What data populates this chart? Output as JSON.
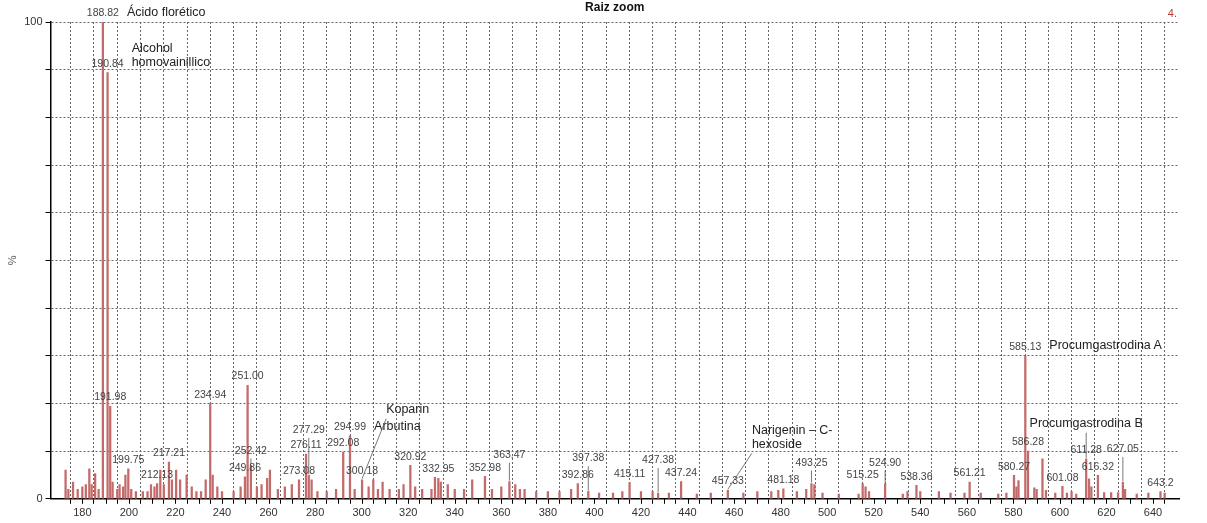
{
  "chart_data": {
    "type": "bar",
    "title": "Raiz zoom",
    "ylabel": "%",
    "color": "#c46a6a",
    "x": [
      172.8,
      174,
      176,
      178,
      180,
      181.5,
      183,
      184,
      185.5,
      187,
      188.82,
      190.84,
      191.98,
      193,
      195,
      196,
      197.5,
      198.5,
      199.75,
      201,
      203,
      206,
      208,
      209.5,
      211,
      212.13,
      213.5,
      215,
      217.21,
      218.5,
      220.3,
      222,
      224.8,
      227,
      229,
      231,
      233,
      234.94,
      236,
      238,
      240,
      245,
      248,
      249.86,
      251.0,
      252.42,
      255,
      257,
      259.4,
      260.6,
      264,
      267,
      270,
      273.08,
      276.11,
      277.29,
      278.5,
      281,
      285,
      289,
      292.08,
      294.99,
      297,
      300.18,
      303,
      305,
      307,
      309,
      312,
      316,
      318,
      320.92,
      323,
      326,
      330,
      331.5,
      332.95,
      334,
      337,
      340,
      344,
      347.5,
      352.98,
      356,
      360,
      363.47,
      366,
      368,
      370,
      375,
      380,
      385,
      390,
      392.86,
      397.38,
      402,
      408,
      412,
      415.11,
      420,
      425,
      427.38,
      432,
      437.24,
      444,
      450,
      457.33,
      464,
      470,
      476,
      479,
      481.18,
      487,
      491,
      493.25,
      494.5,
      498,
      505,
      513.5,
      515.25,
      516.5,
      518,
      524.9,
      532.5,
      534.5,
      538.36,
      540,
      548,
      553,
      559,
      561.21,
      566,
      573.5,
      577,
      580.27,
      581.3,
      582.2,
      585.13,
      586.28,
      589,
      590,
      592.5,
      594,
      598,
      601.08,
      603,
      605,
      607,
      611.28,
      612.5,
      613.5,
      616.32,
      619,
      622,
      625,
      627.05,
      628,
      633,
      638,
      643.2,
      645
    ],
    "values": [
      6,
      2,
      3.5,
      2,
      2.5,
      3,
      6.3,
      3,
      5.3,
      2,
      100,
      89.4,
      19.4,
      3.5,
      2,
      3,
      2.5,
      5,
      6.3,
      2,
      1.5,
      1.5,
      1.5,
      3,
      2.5,
      3.2,
      6,
      3,
      7.7,
      4,
      6,
      4,
      5,
      2.5,
      1.5,
      1.5,
      4,
      20,
      5,
      2.5,
      1.5,
      1.5,
      2.5,
      4.6,
      23.8,
      7,
      2.5,
      3,
      4.3,
      6,
      2,
      2.5,
      3,
      4,
      9.4,
      5,
      4,
      1.5,
      1.5,
      2,
      9.8,
      13.2,
      2,
      4,
      2.5,
      4,
      2,
      3.5,
      2,
      2,
      3,
      7,
      2.5,
      2,
      2,
      4.5,
      4.3,
      3.5,
      3,
      2,
      2,
      4,
      4.7,
      2,
      2.5,
      3.6,
      3,
      2,
      2,
      1.5,
      1.5,
      1.5,
      2,
      3.2,
      1.6,
      1.2,
      1.2,
      1.5,
      3.4,
      1.5,
      1.5,
      1.2,
      1.2,
      3.6,
      1,
      1.2,
      1.8,
      1.2,
      1.5,
      1.5,
      1.8,
      2.1,
      1.5,
      2,
      3.2,
      3,
      1.2,
      1,
      1,
      3.2,
      2.5,
      1.5,
      3.2,
      1,
      1.5,
      2.8,
      1.5,
      1.5,
      1.2,
      1.2,
      3.5,
      1.2,
      1,
      1.2,
      4.9,
      2.5,
      3.8,
      30,
      10,
      2.3,
      2,
      8.4,
      1.8,
      1.2,
      2.6,
      1.2,
      1.5,
      1,
      8.4,
      4.2,
      2.5,
      4.9,
      1.3,
      1.3,
      1.3,
      3.5,
      2,
      1,
      1.2,
      1.5,
      1.2
    ],
    "xlim": [
      171.5,
      646
    ],
    "xticks": [
      180,
      {
        "value": 190,
        "label": null
      },
      200,
      {
        "value": 210,
        "label": null
      },
      220,
      {
        "value": 230,
        "label": null
      },
      240,
      {
        "value": 250,
        "label": null
      },
      260,
      {
        "value": 270,
        "label": null
      },
      280,
      {
        "value": 290,
        "label": null
      },
      300,
      {
        "value": 310,
        "label": null
      },
      320,
      {
        "value": 330,
        "label": null
      },
      340,
      {
        "value": 350,
        "label": null
      },
      360,
      {
        "value": 370,
        "label": null
      },
      380,
      {
        "value": 390,
        "label": null
      },
      400,
      {
        "value": 410,
        "label": null
      },
      420,
      {
        "value": 430,
        "label": null
      },
      440,
      {
        "value": 450,
        "label": null
      },
      460,
      {
        "value": 470,
        "label": null
      },
      480,
      {
        "value": 490,
        "label": null
      },
      500,
      {
        "value": 510,
        "label": null
      },
      520,
      {
        "value": 530,
        "label": null
      },
      540,
      {
        "value": 550,
        "label": null
      },
      560,
      {
        "value": 570,
        "label": null
      },
      580,
      {
        "value": 590,
        "label": null
      },
      600,
      {
        "value": 610,
        "label": null
      },
      620,
      {
        "value": 630,
        "label": null
      },
      640
    ],
    "ylim": [
      0,
      100
    ],
    "yticks": [
      0,
      {
        "value": 10,
        "label": null
      },
      {
        "value": 20,
        "label": null
      },
      {
        "value": 30,
        "label": null
      },
      {
        "value": 40,
        "label": null
      },
      {
        "value": 50,
        "label": null
      },
      {
        "value": 60,
        "label": null
      },
      {
        "value": 70,
        "label": null
      },
      {
        "value": 80,
        "label": null
      },
      {
        "value": 90,
        "label": null
      },
      100
    ],
    "grid": true,
    "annotations": [
      {
        "text": "188.82",
        "x": 188.82,
        "y": 100
      },
      {
        "text": "190.84",
        "x": 190.84,
        "y": 89.4
      },
      {
        "text": "191.98",
        "x": 191.98,
        "y": 19.4
      },
      {
        "text": "199.75",
        "x": 199.75,
        "y": 6.3
      },
      {
        "text": "212.13",
        "x": 212.13,
        "y": 3.2
      },
      {
        "text": "217.21",
        "x": 217.21,
        "y": 7.7
      },
      {
        "text": "234.94",
        "x": 234.94,
        "y": 20
      },
      {
        "text": "249.86",
        "x": 249.86,
        "y": 4.6
      },
      {
        "text": "251.00",
        "x": 251.0,
        "y": 23.8
      },
      {
        "text": "252.42",
        "x": 252.42,
        "y": 7
      },
      {
        "text": "273.08",
        "x": 273.08,
        "y": 4
      },
      {
        "text": "276.11",
        "x": 276.11,
        "y": 9.4
      },
      {
        "text": "277.29",
        "x": 277.29,
        "y": 5
      },
      {
        "text": "292.08",
        "x": 292.08,
        "y": 9.8
      },
      {
        "text": "294.99",
        "x": 294.99,
        "y": 13.2
      },
      {
        "text": "300.18",
        "x": 300.18,
        "y": 4
      },
      {
        "text": "320.92",
        "x": 320.92,
        "y": 7
      },
      {
        "text": "332.95",
        "x": 332.95,
        "y": 4.3
      },
      {
        "text": "352.98",
        "x": 352.98,
        "y": 4.7
      },
      {
        "text": "363.47",
        "x": 363.47,
        "y": 3.6
      },
      {
        "text": "392.86",
        "x": 392.86,
        "y": 3.2
      },
      {
        "text": "397.38",
        "x": 397.38,
        "y": 1.6
      },
      {
        "text": "415.11",
        "x": 415.11,
        "y": 3.4
      },
      {
        "text": "427.38",
        "x": 427.38,
        "y": 1.2
      },
      {
        "text": "437.24",
        "x": 437.24,
        "y": 3.6
      },
      {
        "text": "457.33",
        "x": 457.33,
        "y": 1.8
      },
      {
        "text": "481.18",
        "x": 481.18,
        "y": 2.1
      },
      {
        "text": "493.25",
        "x": 493.25,
        "y": 3.2
      },
      {
        "text": "515.25",
        "x": 515.25,
        "y": 3.2
      },
      {
        "text": "524.90",
        "x": 524.9,
        "y": 3.2
      },
      {
        "text": "538.36",
        "x": 538.36,
        "y": 2.8
      },
      {
        "text": "561.21",
        "x": 561.21,
        "y": 3.5
      },
      {
        "text": "580.27",
        "x": 580.27,
        "y": 4.9
      },
      {
        "text": "585.13",
        "x": 585.13,
        "y": 30
      },
      {
        "text": "586.28",
        "x": 586.28,
        "y": 10
      },
      {
        "text": "601.08",
        "x": 601.08,
        "y": 2.6
      },
      {
        "text": "611.28",
        "x": 611.28,
        "y": 8.4
      },
      {
        "text": "616.32",
        "x": 616.32,
        "y": 4.9
      },
      {
        "text": "627.05",
        "x": 627.05,
        "y": 3.5
      },
      {
        "text": "643.2",
        "x": 643.2,
        "y": 1.5
      },
      {
        "text": "Ácido florético",
        "x": 188.82,
        "y": 100
      },
      {
        "text": "Alcohol\nhomovainillico",
        "x": 190.84,
        "y": 89.4
      },
      {
        "text": "Arbutina",
        "x": 294.99,
        "y": 13.2
      },
      {
        "text": "Koparin",
        "x": 300.18,
        "y": 4
      },
      {
        "text": "Narigenin – C-\nhexoside",
        "x": 457.33,
        "y": 1.8
      },
      {
        "text": "Procumgastrodina A",
        "x": 585.13,
        "y": 30
      },
      {
        "text": "Procumgastrodina B",
        "x": 611.28,
        "y": 8.4
      },
      "4."
    ]
  }
}
